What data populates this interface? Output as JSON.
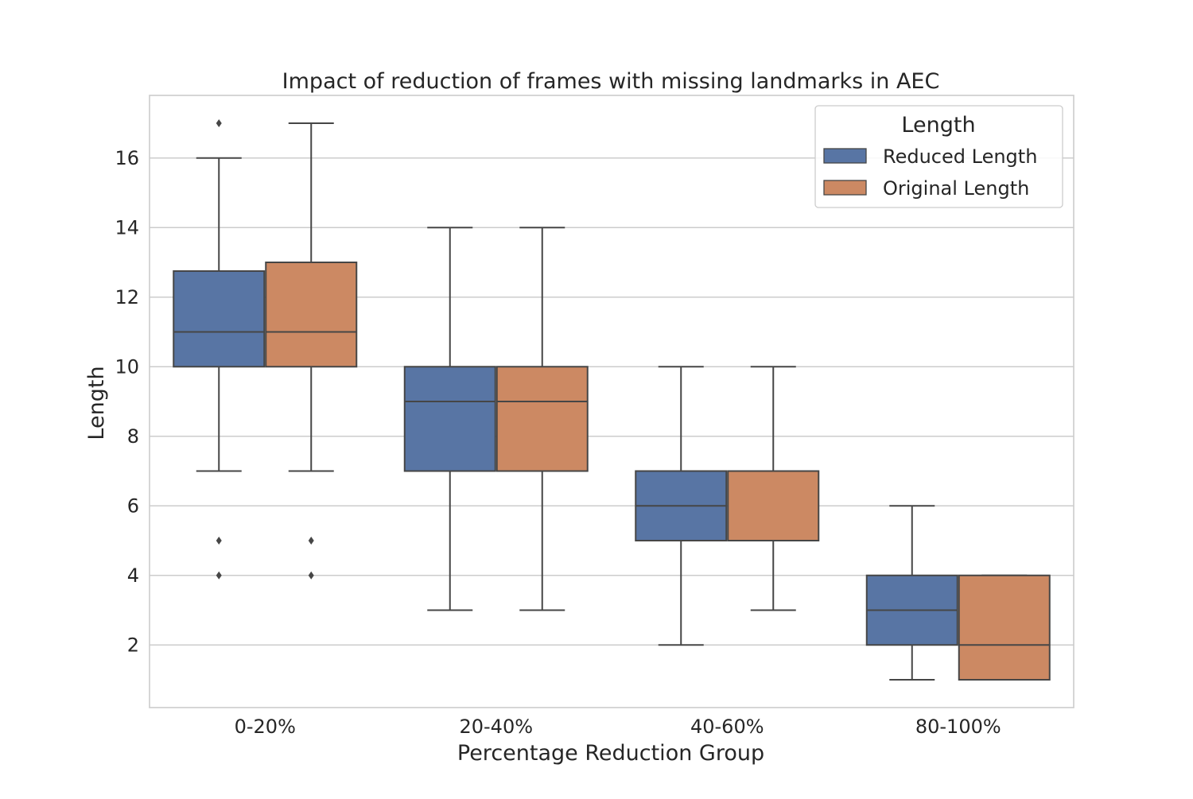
{
  "chart_data": {
    "type": "box",
    "title": "Impact of reduction of frames with missing landmarks in AEC",
    "xlabel": "Percentage Reduction Group",
    "ylabel": "Length",
    "ylim": [
      0.2,
      17.8
    ],
    "yticks": [
      2,
      4,
      6,
      8,
      10,
      12,
      14,
      16
    ],
    "grid": true,
    "categories": [
      "0-20%",
      "20-40%",
      "40-60%",
      "80-100%"
    ],
    "legend": {
      "title": "Length",
      "placement": "top-right"
    },
    "series": [
      {
        "name": "Reduced Length",
        "color": "#5875a4",
        "boxes": [
          {
            "whislo": 7,
            "q1": 10,
            "med": 11,
            "q3": 12.75,
            "whishi": 16,
            "fliers": [
              17,
              5,
              4
            ]
          },
          {
            "whislo": 3,
            "q1": 7,
            "med": 9,
            "q3": 10,
            "whishi": 14,
            "fliers": []
          },
          {
            "whislo": 2,
            "q1": 5,
            "med": 6,
            "q3": 7,
            "whishi": 10,
            "fliers": []
          },
          {
            "whislo": 1,
            "q1": 2,
            "med": 3,
            "q3": 4,
            "whishi": 6,
            "fliers": []
          }
        ]
      },
      {
        "name": "Original Length",
        "color": "#cc8963",
        "boxes": [
          {
            "whislo": 7,
            "q1": 10,
            "med": 11,
            "q3": 13,
            "whishi": 17,
            "fliers": [
              5,
              4
            ]
          },
          {
            "whislo": 3,
            "q1": 7,
            "med": 9,
            "q3": 10,
            "whishi": 14,
            "fliers": []
          },
          {
            "whislo": 3,
            "q1": 5,
            "med": 5,
            "q3": 7,
            "whishi": 10,
            "fliers": []
          },
          {
            "whislo": 1,
            "q1": 1,
            "med": 2,
            "q3": 4,
            "whishi": 4,
            "fliers": []
          }
        ]
      }
    ]
  }
}
